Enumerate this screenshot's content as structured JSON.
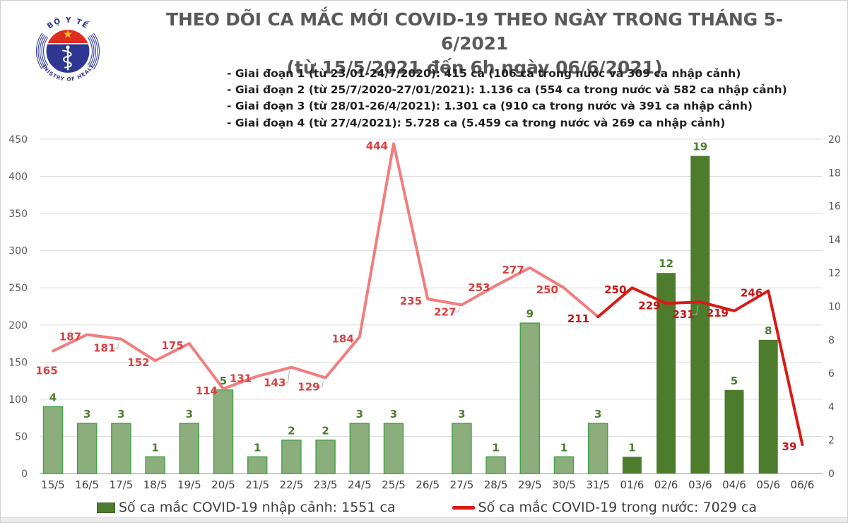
{
  "header": {
    "title_line1": "THEO DÕI CA MẮC MỚI COVID-19 THEO NGÀY TRONG THÁNG 5-6/2021",
    "title_line2": "(từ 15/5/2021 đến 6h ngày 06/6/2021)",
    "phases": [
      "- Giai đoạn 1 (từ 23/01-24/7/2020): 415 ca (106 ca trong nước và 309 ca nhập cảnh)",
      "- Giai đoạn 2 (từ 25/7/2020-27/01/2021): 1.136 ca (554 ca trong nước và 582 ca nhập cảnh)",
      "- Giai đoạn 3 (từ 28/01-26/4/2021): 1.301 ca (910 ca trong nước và 391 ca nhập cảnh)",
      "- Giai đoạn 4 (từ 27/4/2021): 5.728 ca (5.459 ca trong nước và 269 ca nhập cảnh)"
    ],
    "logo": {
      "top_text": "BỘ Y TẾ",
      "bottom_text": "MINISTRY OF HEALTH"
    }
  },
  "chart_data": {
    "type": "bar+line combo",
    "categories": [
      "15/5",
      "16/5",
      "17/5",
      "18/5",
      "19/5",
      "20/5",
      "21/5",
      "22/5",
      "23/5",
      "24/5",
      "25/5",
      "26/5",
      "27/5",
      "28/5",
      "29/5",
      "30/5",
      "31/5",
      "01/6",
      "02/6",
      "03/6",
      "04/6",
      "05/6",
      "06/6"
    ],
    "series": [
      {
        "name": "Số ca mắc COVID-19 nhập cảnh: 1551 ca",
        "type": "bar",
        "axis": "right",
        "values": [
          4,
          3,
          3,
          1,
          3,
          5,
          1,
          2,
          2,
          3,
          3,
          null,
          3,
          1,
          9,
          1,
          3,
          1,
          12,
          19,
          5,
          8,
          null
        ],
        "dark_from_index": 17
      },
      {
        "name": "Số ca mắc COVID-19 trong nước: 7029 ca",
        "type": "line",
        "axis": "left",
        "values": [
          165,
          187,
          181,
          152,
          175,
          114,
          131,
          143,
          129,
          184,
          444,
          235,
          227,
          253,
          277,
          250,
          211,
          250,
          229,
          231,
          219,
          246,
          39
        ],
        "dark_from_index": 16
      }
    ],
    "left_axis": {
      "min": 0,
      "max": 450,
      "step": 50,
      "ticks": [
        "0",
        "50",
        "100",
        "150",
        "200",
        "250",
        "300",
        "350",
        "400",
        "450"
      ]
    },
    "right_axis": {
      "min": 0,
      "max": 20,
      "step": 2,
      "ticks": [
        "0",
        "2",
        "4",
        "6",
        "8",
        "10",
        "12",
        "14",
        "16",
        "18",
        "20"
      ]
    },
    "grid": true,
    "legend_position": "bottom",
    "colors": {
      "bar_fill_early": "#8cae7c",
      "bar_stroke_early": "#46a24c",
      "bar_fill_late": "#4d7c2c",
      "bar_label": "#4e7d2e",
      "line_early": "#f27d7d",
      "line_late": "#d81a17",
      "line_label_early": "#db4040",
      "line_label_late": "#c61414",
      "grid_line": "#dcdcdc",
      "axis_zero_line": "#b7b7b7",
      "axis_text": "#595959",
      "category_text": "#3f3f3f"
    }
  }
}
